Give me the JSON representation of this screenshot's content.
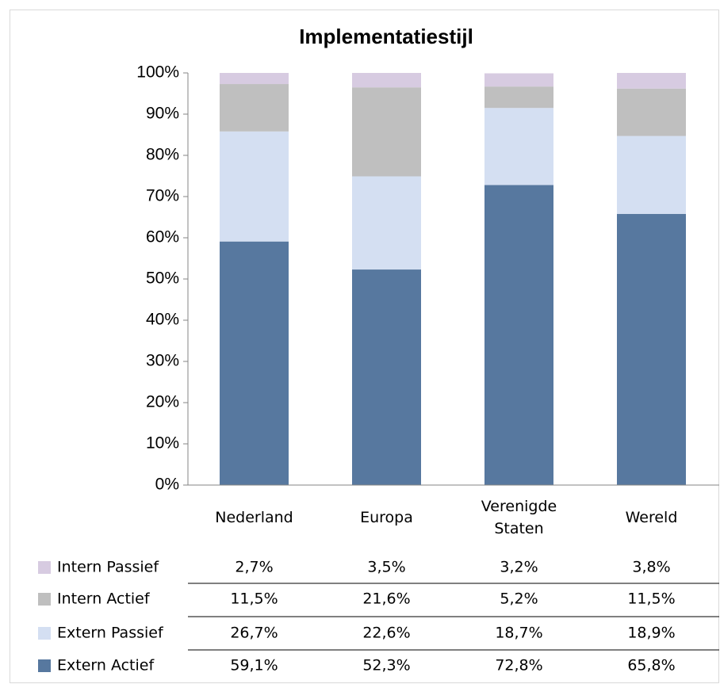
{
  "chart_data": {
    "type": "stacked_bar",
    "title": "Implementatiestijl",
    "categories": [
      "Nederland",
      "Europa",
      "Verenigde Staten",
      "Wereld"
    ],
    "series": [
      {
        "name": "Extern Actief",
        "color": "#57789f",
        "values": [
          59.1,
          52.3,
          72.8,
          65.8
        ],
        "value_labels": [
          "59,1%",
          "52,3%",
          "72,8%",
          "65,8%"
        ]
      },
      {
        "name": "Extern Passief",
        "color": "#d4dff2",
        "values": [
          26.7,
          22.6,
          18.7,
          18.9
        ],
        "value_labels": [
          "26,7%",
          "22,6%",
          "18,7%",
          "18,9%"
        ]
      },
      {
        "name": "Intern Actief",
        "color": "#bfbfbf",
        "values": [
          11.5,
          21.6,
          5.2,
          11.5
        ],
        "value_labels": [
          "11,5%",
          "21,6%",
          "5,2%",
          "11,5%"
        ]
      },
      {
        "name": "Intern Passief",
        "color": "#d7cbe1",
        "values": [
          2.7,
          3.5,
          3.2,
          3.8
        ],
        "value_labels": [
          "2,7%",
          "3,5%",
          "3,2%",
          "3,8%"
        ]
      }
    ],
    "ylim": [
      0,
      100
    ],
    "yticks": [
      {
        "value": 0,
        "label": "0%"
      },
      {
        "value": 10,
        "label": "10%"
      },
      {
        "value": 20,
        "label": "20%"
      },
      {
        "value": 30,
        "label": "30%"
      },
      {
        "value": 40,
        "label": "40%"
      },
      {
        "value": 50,
        "label": "50%"
      },
      {
        "value": 60,
        "label": "60%"
      },
      {
        "value": 70,
        "label": "70%"
      },
      {
        "value": 80,
        "label": "80%"
      },
      {
        "value": 90,
        "label": "90%"
      },
      {
        "value": 100,
        "label": "100%"
      }
    ],
    "grid": false
  }
}
